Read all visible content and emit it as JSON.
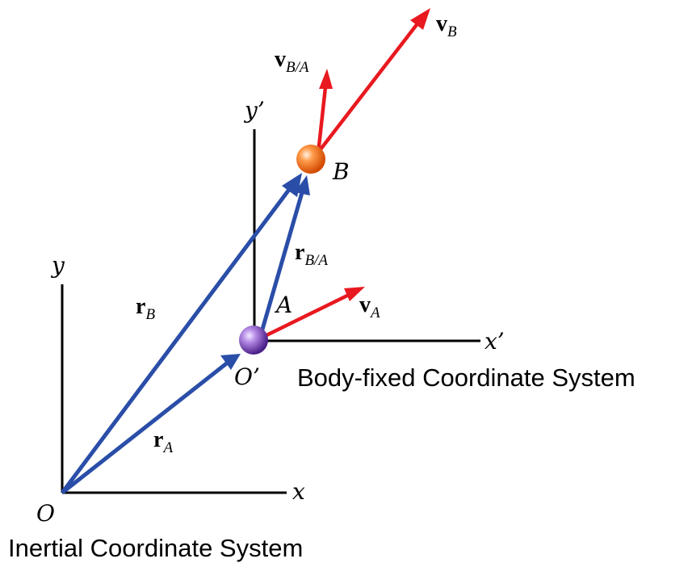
{
  "inertial_frame": {
    "caption": "Inertial Coordinate System",
    "origin_label": "O",
    "x_label": "x",
    "y_label": "y"
  },
  "body_frame": {
    "caption": "Body-fixed Coordinate System",
    "origin_label": "O’",
    "x_label": "x’",
    "y_label": "y’"
  },
  "points": {
    "a_label": "A",
    "b_label": "B"
  },
  "vectors": {
    "r_a": {
      "symbol": "r",
      "subscript": "A"
    },
    "r_b": {
      "symbol": "r",
      "subscript": "B"
    },
    "r_ba": {
      "symbol": "r",
      "subscript": "B/A"
    },
    "v_a": {
      "symbol": "v",
      "subscript": "A"
    },
    "v_b": {
      "symbol": "v",
      "subscript": "B"
    },
    "v_ba": {
      "symbol": "v",
      "subscript": "B/A"
    }
  },
  "colors": {
    "position_vector": "#2a4ea8",
    "velocity_vector": "#e8191f",
    "point_a_ball": "#7a3db8",
    "point_b_ball": "#f26a1b",
    "axes": "#000000"
  }
}
